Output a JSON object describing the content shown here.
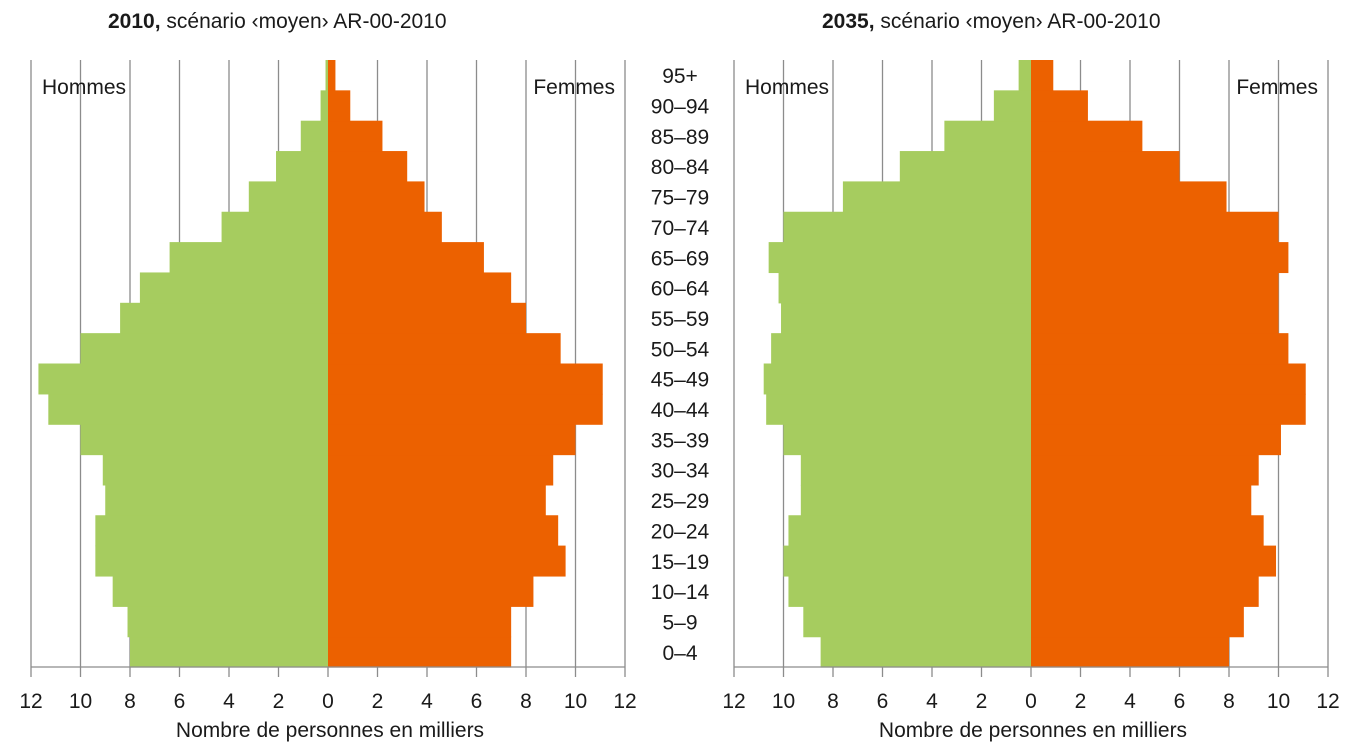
{
  "chart_data": [
    {
      "type": "bar",
      "orientation": "population-pyramid",
      "title_bold": "2010,",
      "title_rest": " scénario ‹moyen› AR-00-2010",
      "left_label": "Hommes",
      "right_label": "Femmes",
      "xlabel": "Nombre de personnes en milliers",
      "xlim": [
        0,
        12
      ],
      "xticks": [
        "12",
        "10",
        "8",
        "6",
        "4",
        "2",
        "0",
        "2",
        "4",
        "6",
        "8",
        "10",
        "12"
      ],
      "grid": true,
      "categories": [
        "0–4",
        "5–9",
        "10–14",
        "15–19",
        "20–24",
        "25–29",
        "30–34",
        "35–39",
        "40–44",
        "45–49",
        "50–54",
        "55–59",
        "60–64",
        "65–69",
        "70–74",
        "75–79",
        "80–84",
        "85–89",
        "90–94",
        "95+"
      ],
      "series": [
        {
          "name": "Hommes",
          "color": "#a6cc5f",
          "values": [
            8.0,
            8.1,
            8.7,
            9.4,
            9.4,
            9.0,
            9.1,
            10.0,
            11.3,
            11.7,
            10.0,
            8.4,
            7.6,
            6.4,
            4.3,
            3.2,
            2.1,
            1.1,
            0.3,
            0.1
          ]
        },
        {
          "name": "Femmes",
          "color": "#ec6100",
          "values": [
            7.4,
            7.4,
            8.3,
            9.6,
            9.3,
            8.8,
            9.1,
            10.0,
            11.1,
            11.1,
            9.4,
            8.0,
            7.4,
            6.3,
            4.6,
            3.9,
            3.2,
            2.2,
            0.9,
            0.3
          ]
        }
      ]
    },
    {
      "type": "bar",
      "orientation": "population-pyramid",
      "title_bold": "2035,",
      "title_rest": " scénario ‹moyen› AR-00-2010",
      "left_label": "Hommes",
      "right_label": "Femmes",
      "xlabel": "Nombre de personnes en milliers",
      "xlim": [
        0,
        12
      ],
      "xticks": [
        "12",
        "10",
        "8",
        "6",
        "4",
        "2",
        "0",
        "2",
        "4",
        "6",
        "8",
        "10",
        "12"
      ],
      "grid": true,
      "categories": [
        "0–4",
        "5–9",
        "10–14",
        "15–19",
        "20–24",
        "25–29",
        "30–34",
        "35–39",
        "40–44",
        "45–49",
        "50–54",
        "55–59",
        "60–64",
        "65–69",
        "70–74",
        "75–79",
        "80–84",
        "85–89",
        "90–94",
        "95+"
      ],
      "series": [
        {
          "name": "Hommes",
          "color": "#a6cc5f",
          "values": [
            8.5,
            9.2,
            9.8,
            10.0,
            9.8,
            9.3,
            9.3,
            10.0,
            10.7,
            10.8,
            10.5,
            10.1,
            10.2,
            10.6,
            10.0,
            7.6,
            5.3,
            3.5,
            1.5,
            0.5
          ]
        },
        {
          "name": "Femmes",
          "color": "#ec6100",
          "values": [
            8.0,
            8.6,
            9.2,
            9.9,
            9.4,
            8.9,
            9.2,
            10.1,
            11.1,
            11.1,
            10.4,
            10.0,
            10.0,
            10.4,
            10.0,
            7.9,
            6.0,
            4.5,
            2.3,
            0.9
          ]
        }
      ]
    }
  ]
}
